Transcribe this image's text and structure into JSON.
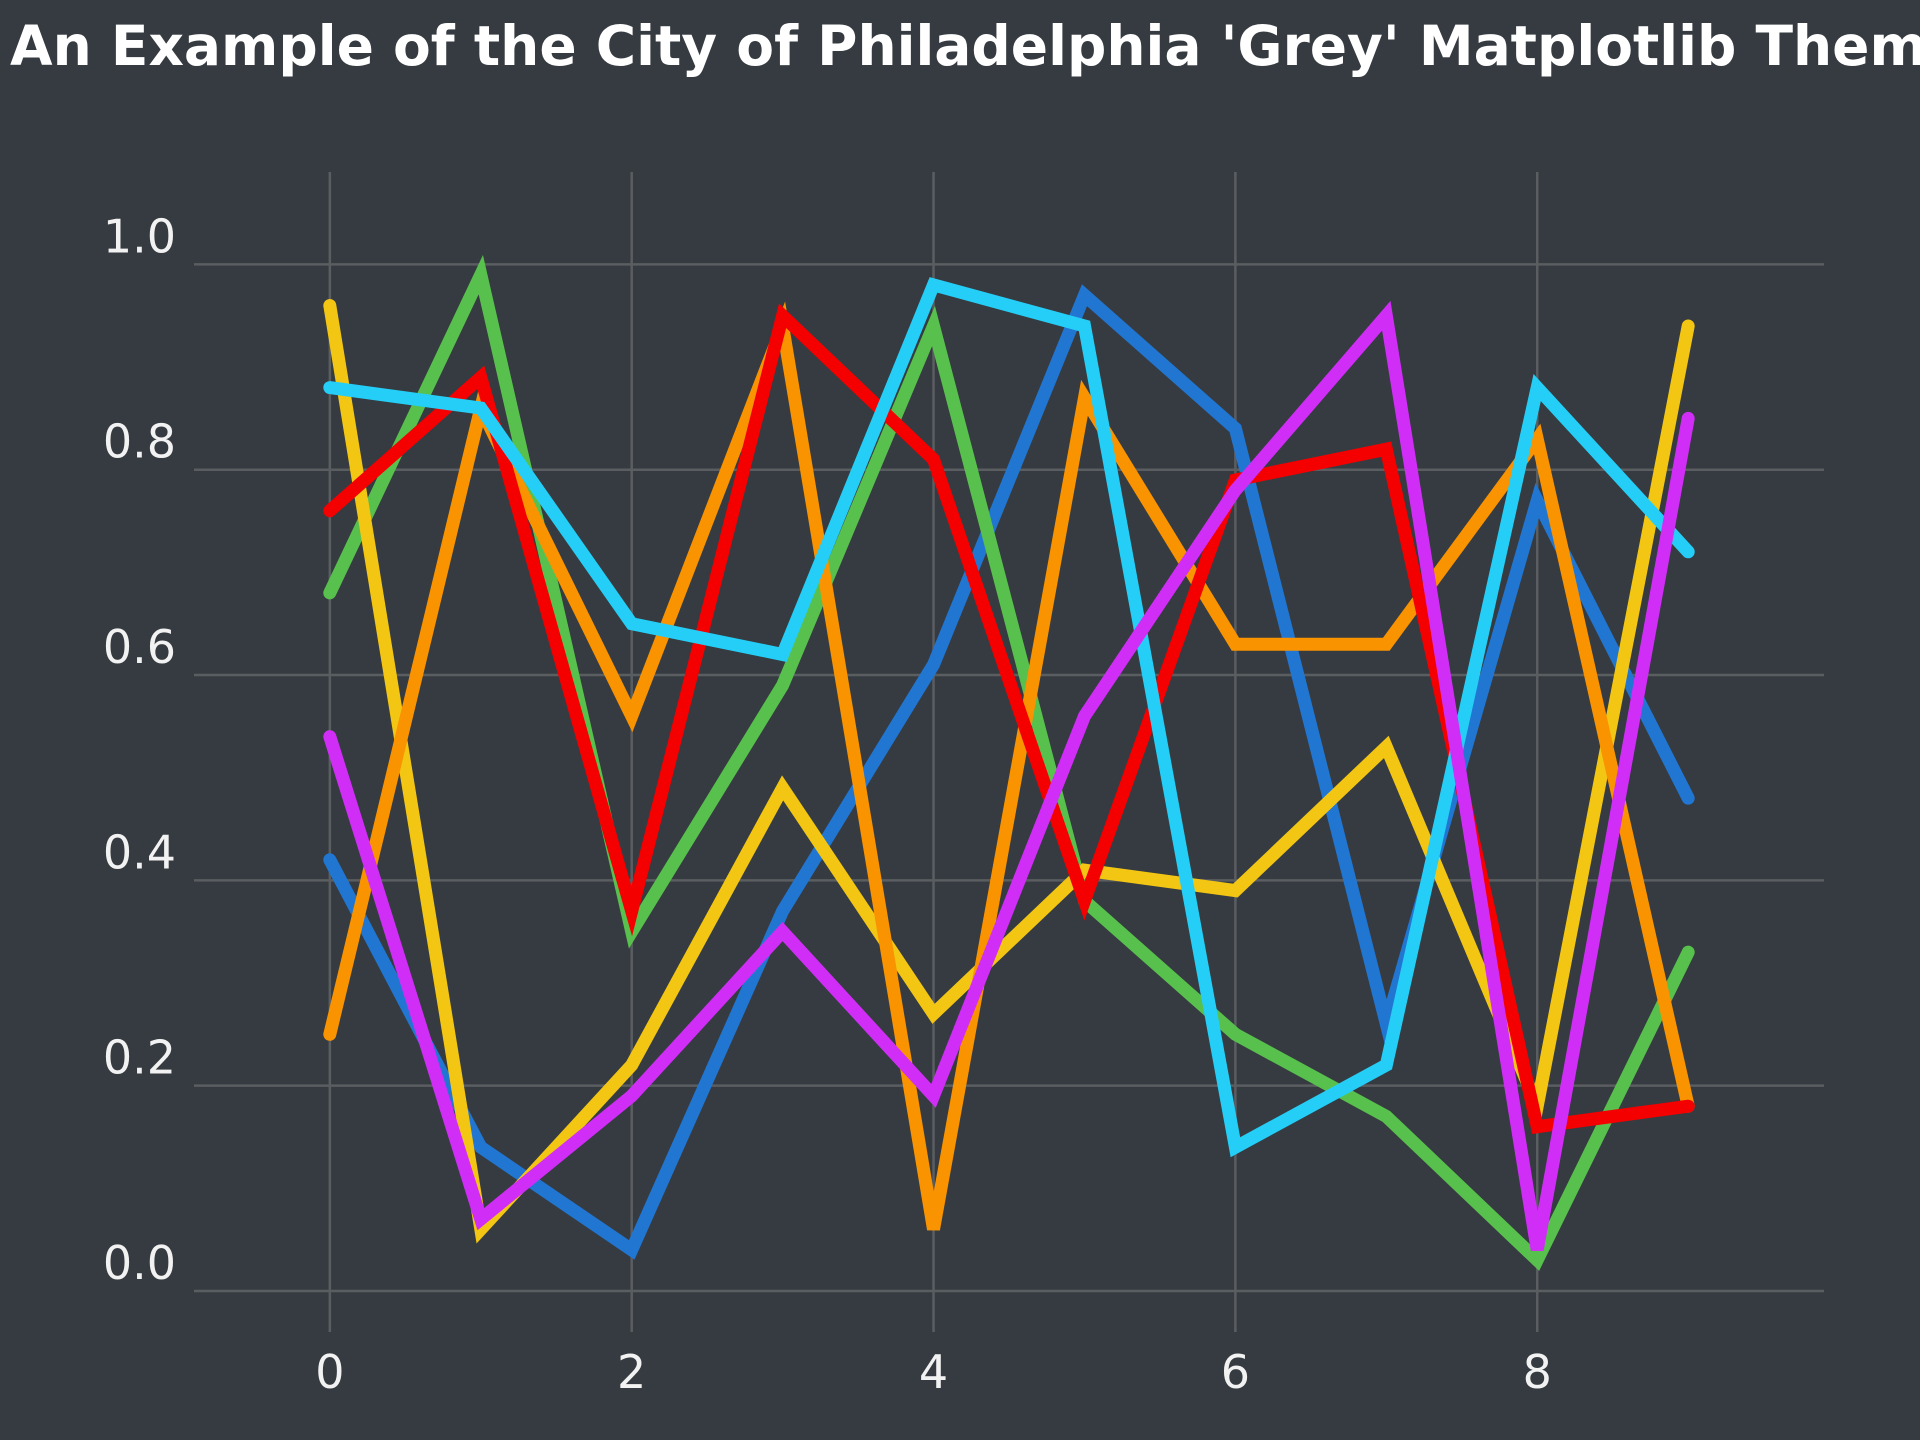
{
  "chart_data": {
    "type": "line",
    "title": "An Example of the City of Philadelphia 'Grey' Matplotlib Theme",
    "xlabel": "",
    "ylabel": "",
    "grid": true,
    "legend": "none",
    "background": "#353b40",
    "xlim": [
      -0.9,
      9.9
    ],
    "ylim": [
      -0.04,
      1.09
    ],
    "x_ticks": [
      "0",
      "2",
      "4",
      "6",
      "8"
    ],
    "y_ticks": [
      "0.0",
      "0.2",
      "0.4",
      "0.6",
      "0.8",
      "1.0"
    ],
    "x": [
      0,
      1,
      2,
      3,
      4,
      5,
      6,
      7,
      8,
      9
    ],
    "series": [
      {
        "color": "#2176d2",
        "values": [
          0.42,
          0.14,
          0.04,
          0.37,
          0.61,
          0.97,
          0.84,
          0.26,
          0.77,
          0.48
        ]
      },
      {
        "color": "#58c04d",
        "values": [
          0.68,
          0.99,
          0.35,
          0.59,
          0.94,
          0.38,
          0.25,
          0.17,
          0.03,
          0.33
        ]
      },
      {
        "color": "#f3c613",
        "values": [
          0.96,
          0.06,
          0.22,
          0.49,
          0.27,
          0.41,
          0.39,
          0.53,
          0.18,
          0.94
        ]
      },
      {
        "color": "#f99300",
        "values": [
          0.25,
          0.86,
          0.56,
          0.94,
          0.06,
          0.87,
          0.63,
          0.63,
          0.83,
          0.18
        ]
      },
      {
        "color": "#f40000",
        "values": [
          0.76,
          0.89,
          0.37,
          0.95,
          0.81,
          0.38,
          0.79,
          0.82,
          0.16,
          0.18
        ]
      },
      {
        "color": "#25cef7",
        "values": [
          0.88,
          0.86,
          0.65,
          0.62,
          0.98,
          0.94,
          0.14,
          0.22,
          0.88,
          0.72
        ]
      },
      {
        "color": "#d02ef7",
        "values": [
          0.54,
          0.07,
          0.19,
          0.35,
          0.19,
          0.56,
          0.78,
          0.95,
          0.04,
          0.85
        ]
      }
    ]
  }
}
